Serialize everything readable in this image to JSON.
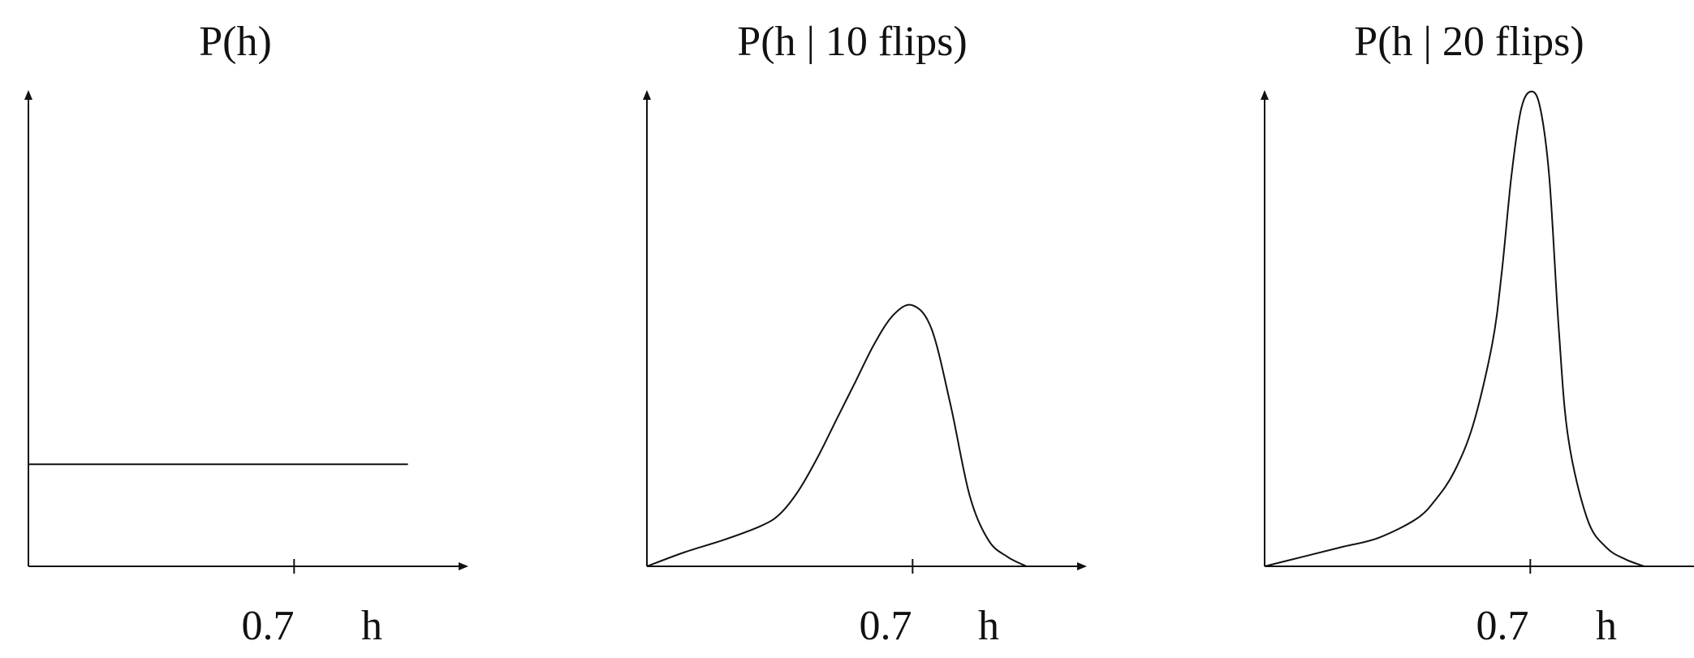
{
  "chart_data": [
    {
      "type": "line",
      "title": "P(h)",
      "xlabel": "h",
      "xticks": [
        "0.7"
      ],
      "xlim": [
        0,
        1.08
      ],
      "ylim": [
        0,
        1
      ],
      "grid": false,
      "series": [
        {
          "x": [
            0,
            1.0
          ],
          "y": [
            0.215,
            0.215
          ]
        }
      ]
    },
    {
      "type": "line",
      "title": "P(h | 10 flips)",
      "xlabel": "h",
      "xticks": [
        "0.7"
      ],
      "xlim": [
        0,
        1.08
      ],
      "ylim": [
        0,
        1
      ],
      "grid": false,
      "series": [
        {
          "x": [
            0,
            0.1,
            0.2,
            0.3,
            0.35,
            0.4,
            0.45,
            0.5,
            0.55,
            0.6,
            0.65,
            0.7,
            0.75,
            0.8,
            0.85,
            0.9,
            0.95,
            1.0
          ],
          "y": [
            0,
            0.03,
            0.055,
            0.085,
            0.11,
            0.16,
            0.23,
            0.31,
            0.39,
            0.47,
            0.53,
            0.55,
            0.5,
            0.34,
            0.15,
            0.055,
            0.02,
            0
          ]
        }
      ]
    },
    {
      "type": "line",
      "title": "P(h | 20 flips)",
      "xlabel": "h",
      "xticks": [
        "0.7"
      ],
      "xlim": [
        0,
        1.08
      ],
      "ylim": [
        0,
        1
      ],
      "grid": false,
      "series": [
        {
          "x": [
            0,
            0.1,
            0.2,
            0.3,
            0.4,
            0.45,
            0.5,
            0.55,
            0.6,
            0.625,
            0.65,
            0.675,
            0.7,
            0.725,
            0.75,
            0.775,
            0.8,
            0.85,
            0.9,
            0.95,
            1.0
          ],
          "y": [
            0,
            0.02,
            0.04,
            0.06,
            0.1,
            0.14,
            0.2,
            0.3,
            0.47,
            0.62,
            0.82,
            0.96,
            1.0,
            0.97,
            0.82,
            0.5,
            0.27,
            0.1,
            0.04,
            0.015,
            0
          ]
        }
      ]
    }
  ]
}
